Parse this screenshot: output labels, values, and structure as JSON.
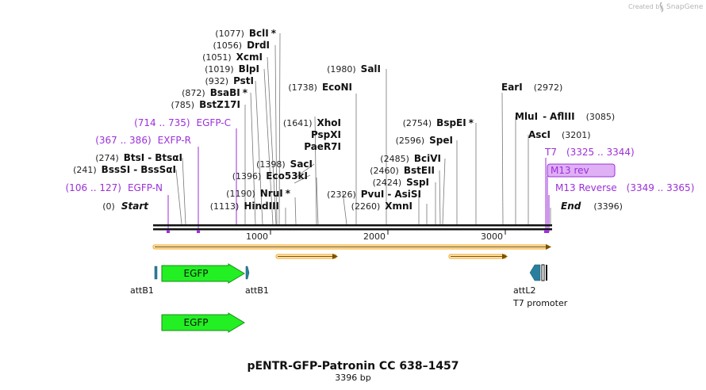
{
  "credit": {
    "prefix": "Created by",
    "brand": "SnapGene"
  },
  "plasmid": {
    "name": "pENTR-GFP-Patronin CC 638–1457",
    "length_label": "3396 bp",
    "length": 3396
  },
  "ruler": {
    "ticks": [
      "1000",
      "2000",
      "3000"
    ]
  },
  "sites": [
    {
      "pos": "(1077)",
      "name": "BclI",
      "star": true
    },
    {
      "pos": "(1056)",
      "name": "DrdI"
    },
    {
      "pos": "(1051)",
      "name": "XcmI"
    },
    {
      "pos": "(1019)",
      "name": "BlpI"
    },
    {
      "pos": "(932)",
      "name": "PstI"
    },
    {
      "pos": "(872)",
      "name": "BsaBI",
      "star": true
    },
    {
      "pos": "(785)",
      "name": "BstZ17I"
    },
    {
      "pos": "(274)",
      "name": "BtsI",
      "name2": "BtsαI"
    },
    {
      "pos": "(241)",
      "name": "BssSI",
      "name2": "BssSαI"
    },
    {
      "pos": "(0)",
      "name": "Start"
    },
    {
      "pos": "(1980)",
      "name": "SalI"
    },
    {
      "pos": "(1738)",
      "name": "EcoNI"
    },
    {
      "pos": "(1641)",
      "name": "XhoI"
    },
    {
      "pos": "",
      "name": "PspXI"
    },
    {
      "pos": "",
      "name": "PaeR7I"
    },
    {
      "pos": "(1398)",
      "name": "SacI"
    },
    {
      "pos": "(1396)",
      "name": "Eco53kI"
    },
    {
      "pos": "(1190)",
      "name": "NruI",
      "star": true
    },
    {
      "pos": "(1113)",
      "name": "HindIII"
    },
    {
      "pos": "(2754)",
      "name": "BspEI",
      "star": true
    },
    {
      "pos": "(2596)",
      "name": "SpeI"
    },
    {
      "pos": "(2485)",
      "name": "BciVI"
    },
    {
      "pos": "(2460)",
      "name": "BstEII"
    },
    {
      "pos": "(2424)",
      "name": "SspI"
    },
    {
      "pos": "(2326)",
      "name": "PvuI",
      "name2": "AsiSI"
    },
    {
      "pos": "(2260)",
      "name": "XmnI"
    },
    {
      "pos": "(2972)",
      "name": "EarI"
    },
    {
      "pos": "(3085)",
      "name": "MluI",
      "name2": "AflIII"
    },
    {
      "pos": "(3201)",
      "name": "AscI"
    },
    {
      "pos": "(3396)",
      "name": "End"
    }
  ],
  "primers": [
    {
      "name": "EGFP-C",
      "range": "(714 .. 735)"
    },
    {
      "name": "EXFP-R",
      "range": "(367 .. 386)"
    },
    {
      "name": "EGFP-N",
      "range": "(106 .. 127)"
    },
    {
      "name": "T7",
      "range": "(3325 .. 3344)"
    },
    {
      "name": "M13 rev",
      "range": ""
    },
    {
      "name": "M13 Reverse",
      "range": "(3349 .. 3365)"
    }
  ],
  "features": [
    {
      "name": "EGFP",
      "row": 1
    },
    {
      "name": "EGFP",
      "row": 2
    },
    {
      "name": "attB1",
      "side": "left"
    },
    {
      "name": "attB1",
      "side": "right"
    },
    {
      "name": "attL2"
    },
    {
      "name": "T7 promoter"
    }
  ],
  "colors": {
    "egfp": "#22f022",
    "orf": "#f5a623",
    "attl2": "#2a7f9e",
    "primer": "#9b30d9",
    "highlight": "#e0b0f5"
  }
}
